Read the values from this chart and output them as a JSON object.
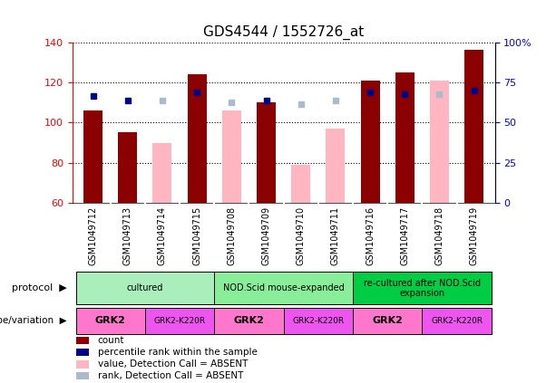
{
  "title": "GDS4544 / 1552726_at",
  "samples": [
    "GSM1049712",
    "GSM1049713",
    "GSM1049714",
    "GSM1049715",
    "GSM1049708",
    "GSM1049709",
    "GSM1049710",
    "GSM1049711",
    "GSM1049716",
    "GSM1049717",
    "GSM1049718",
    "GSM1049719"
  ],
  "count_values": [
    106,
    95,
    null,
    124,
    null,
    110,
    null,
    null,
    121,
    125,
    null,
    136
  ],
  "pink_values": [
    null,
    null,
    90,
    null,
    106,
    null,
    79,
    97,
    null,
    null,
    121,
    null
  ],
  "blue_rank_values": [
    113,
    111,
    null,
    115,
    null,
    111,
    null,
    null,
    115,
    114,
    null,
    116
  ],
  "light_blue_rank_values": [
    null,
    null,
    111,
    null,
    110,
    null,
    109,
    111,
    null,
    null,
    114,
    null
  ],
  "ylim": [
    60,
    140
  ],
  "yticks_left": [
    60,
    80,
    100,
    120,
    140
  ],
  "count_color": "#8B0000",
  "pink_color": "#FFB6C1",
  "blue_color": "#00008B",
  "light_blue_color": "#AABBCC",
  "bar_width": 0.55,
  "protocol_groups": [
    {
      "label": "cultured",
      "start": 0,
      "end": 4,
      "color": "#AAEEBB"
    },
    {
      "label": "NOD.Scid mouse-expanded",
      "start": 4,
      "end": 8,
      "color": "#88EE99"
    },
    {
      "label": "re-cultured after NOD.Scid\nexpansion",
      "start": 8,
      "end": 12,
      "color": "#00CC44"
    }
  ],
  "genotype_groups": [
    {
      "label": "GRK2",
      "start": 0,
      "end": 2,
      "color": "#FF77CC"
    },
    {
      "label": "GRK2-K220R",
      "start": 2,
      "end": 4,
      "color": "#EE55EE"
    },
    {
      "label": "GRK2",
      "start": 4,
      "end": 6,
      "color": "#FF77CC"
    },
    {
      "label": "GRK2-K220R",
      "start": 6,
      "end": 8,
      "color": "#EE55EE"
    },
    {
      "label": "GRK2",
      "start": 8,
      "end": 10,
      "color": "#FF77CC"
    },
    {
      "label": "GRK2-K220R",
      "start": 10,
      "end": 12,
      "color": "#EE55EE"
    }
  ],
  "legend_items": [
    {
      "label": "count",
      "color": "#8B0000"
    },
    {
      "label": "percentile rank within the sample",
      "color": "#00008B"
    },
    {
      "label": "value, Detection Call = ABSENT",
      "color": "#FFB6C1"
    },
    {
      "label": "rank, Detection Call = ABSENT",
      "color": "#AABBCC"
    }
  ]
}
